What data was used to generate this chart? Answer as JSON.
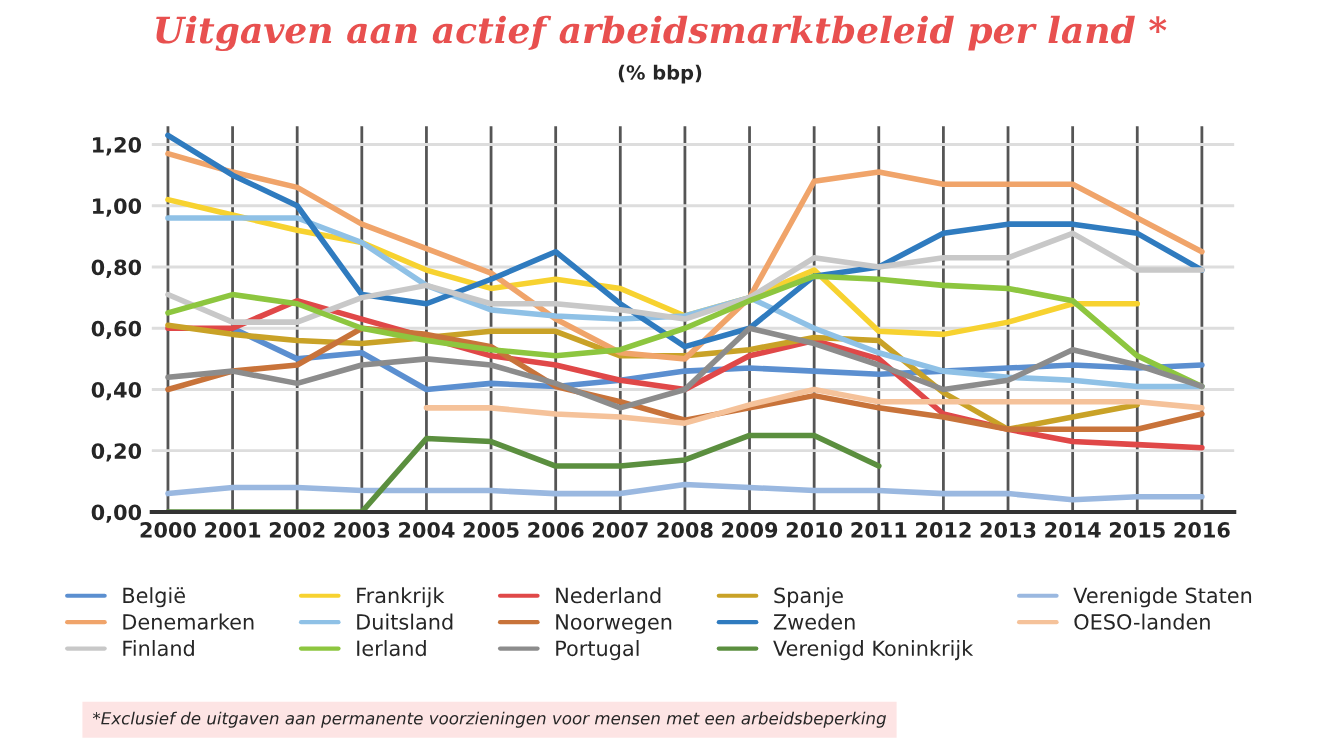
{
  "chart_data": {
    "type": "line",
    "title": "Uitgaven aan actief arbeidsmarktbeleid per land *",
    "subtitle": "(% bbp)",
    "categories": [
      "2000",
      "2001",
      "2002",
      "2003",
      "2004",
      "2005",
      "2006",
      "2007",
      "2008",
      "2009",
      "2010",
      "2011",
      "2012",
      "2013",
      "2014",
      "2015",
      "2016"
    ],
    "ylim": [
      0,
      1.26
    ],
    "yticks": [
      {
        "value": 0,
        "label": "0,00"
      },
      {
        "value": 0.2,
        "label": "0,20"
      },
      {
        "value": 0.4,
        "label": "0,40"
      },
      {
        "value": 0.6,
        "label": "0,60"
      },
      {
        "value": 0.8,
        "label": "0,80"
      },
      {
        "value": 1.0,
        "label": "1,00"
      },
      {
        "value": 1.2,
        "label": "1,20"
      }
    ],
    "grid": true,
    "legend": "bottom",
    "marker": "none",
    "line_style": "solid",
    "series": [
      {
        "name": "België",
        "color": "#5b8fd0",
        "values": [
          null,
          0.6,
          0.5,
          0.52,
          0.4,
          0.42,
          0.41,
          0.43,
          0.46,
          0.47,
          0.46,
          0.45,
          0.46,
          0.47,
          0.48,
          0.47,
          0.48
        ]
      },
      {
        "name": "Frankrijk",
        "color": "#f7d230",
        "values": [
          1.02,
          0.97,
          0.92,
          0.88,
          0.79,
          0.73,
          0.76,
          0.73,
          0.64,
          0.7,
          0.79,
          0.59,
          0.58,
          0.62,
          0.68,
          0.68,
          null
        ]
      },
      {
        "name": "Nederland",
        "color": "#e04848",
        "values": [
          0.6,
          0.6,
          0.69,
          0.63,
          0.57,
          0.51,
          0.48,
          0.43,
          0.4,
          0.51,
          0.56,
          0.5,
          0.32,
          0.27,
          0.23,
          0.22,
          0.21
        ]
      },
      {
        "name": "Spanje",
        "color": "#c9a227",
        "values": [
          0.61,
          0.58,
          0.56,
          0.55,
          0.57,
          0.59,
          0.59,
          0.51,
          0.51,
          0.53,
          0.57,
          0.56,
          0.39,
          0.27,
          0.31,
          0.35,
          null
        ]
      },
      {
        "name": "Verenigde Staten",
        "color": "#9ab8e0",
        "values": [
          0.06,
          0.08,
          0.08,
          0.07,
          0.07,
          0.07,
          0.06,
          0.06,
          0.09,
          0.08,
          0.07,
          0.07,
          0.06,
          0.06,
          0.04,
          0.05,
          0.05
        ]
      },
      {
        "name": "Denemarken",
        "color": "#f0a46a",
        "values": [
          1.17,
          1.11,
          1.06,
          0.94,
          0.86,
          0.78,
          0.63,
          0.52,
          0.5,
          0.7,
          1.08,
          1.11,
          1.07,
          1.07,
          1.07,
          0.96,
          0.85
        ]
      },
      {
        "name": "Duitsland",
        "color": "#8fc1e6",
        "values": [
          0.96,
          0.96,
          0.96,
          0.88,
          0.74,
          0.66,
          0.64,
          0.63,
          0.64,
          0.7,
          0.6,
          0.52,
          0.46,
          0.44,
          0.43,
          0.41,
          0.41
        ]
      },
      {
        "name": "Noorwegen",
        "color": "#c8733a",
        "values": [
          0.4,
          0.46,
          0.48,
          0.6,
          0.58,
          0.54,
          0.41,
          0.36,
          0.3,
          0.34,
          0.38,
          0.34,
          0.31,
          0.27,
          0.27,
          0.27,
          0.32
        ]
      },
      {
        "name": "Zweden",
        "color": "#2f7bbf",
        "values": [
          1.23,
          1.1,
          1.0,
          0.71,
          0.68,
          0.76,
          0.85,
          0.68,
          0.54,
          0.6,
          0.77,
          0.8,
          0.91,
          0.94,
          0.94,
          0.91,
          0.79
        ]
      },
      {
        "name": "OESO-landen",
        "color": "#f5c29a",
        "values": [
          null,
          null,
          null,
          null,
          0.34,
          0.34,
          0.32,
          0.31,
          0.29,
          0.35,
          0.4,
          0.36,
          0.36,
          0.36,
          0.36,
          0.36,
          0.34
        ]
      },
      {
        "name": "Finland",
        "color": "#c8c8c8",
        "values": [
          0.71,
          0.62,
          0.62,
          0.7,
          0.74,
          0.68,
          0.68,
          0.66,
          0.63,
          0.7,
          0.83,
          0.8,
          0.83,
          0.83,
          0.91,
          0.79,
          0.79
        ]
      },
      {
        "name": "Ierland",
        "color": "#8dc63f",
        "values": [
          0.65,
          0.71,
          0.68,
          0.6,
          0.56,
          0.53,
          0.51,
          0.53,
          0.6,
          0.69,
          0.77,
          0.76,
          0.74,
          0.73,
          0.69,
          0.51,
          0.41
        ]
      },
      {
        "name": "Portugal",
        "color": "#8c8c8c",
        "values": [
          0.44,
          0.46,
          0.42,
          0.48,
          0.5,
          0.48,
          0.42,
          0.34,
          0.4,
          0.6,
          0.55,
          0.48,
          0.4,
          0.43,
          0.53,
          0.48,
          0.41
        ]
      },
      {
        "name": "Verenigd Koninkrijk",
        "color": "#5b8f3f",
        "values": [
          0.0,
          0.0,
          0.0,
          0.0,
          0.24,
          0.23,
          0.15,
          0.15,
          0.17,
          0.25,
          0.25,
          0.15,
          null,
          null,
          null,
          null,
          null
        ]
      }
    ],
    "annotations": [
      "*Exclusief de uitgaven aan permanente voorzieningen voor mensen met een arbeidsbeperking"
    ]
  }
}
